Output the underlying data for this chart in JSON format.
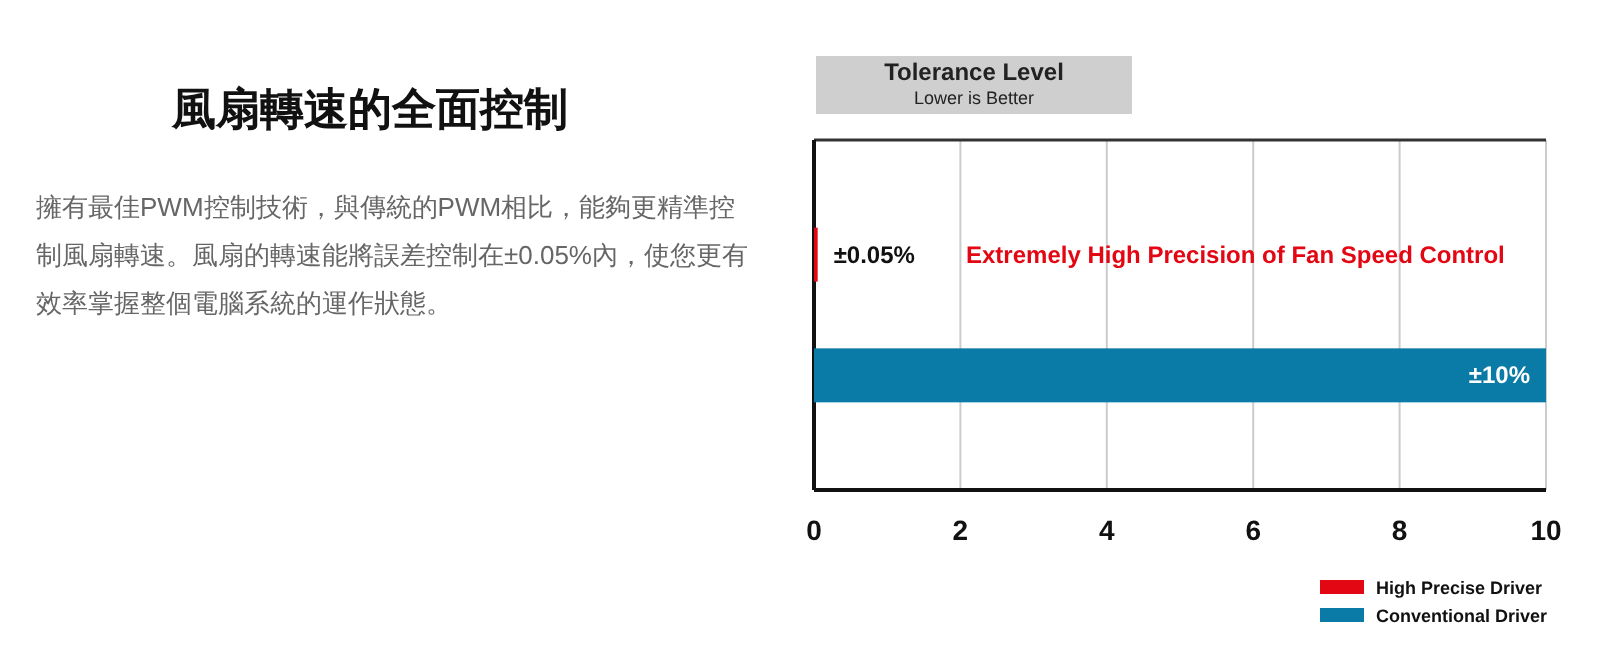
{
  "chart_data": [
    {
      "type": "other",
      "title": "風扇轉速的全面控制",
      "annotations": [
        "擁有最佳PWM控制技術，與傳統的PWM相比，能夠更精準控制風扇轉速。風扇的轉速能將誤差控制在±0.05%內，使您更有效率掌握整個電腦系統的運作狀態。"
      ]
    },
    {
      "type": "bar",
      "orientation": "horizontal",
      "title": "Tolerance Level",
      "subtitle": "Lower is Better",
      "categories": [
        null,
        null
      ],
      "series": [
        {
          "name": "High Precise Driver",
          "color": "#e30613",
          "values": [
            0.05,
            null
          ],
          "value_labels": [
            "±0.05%",
            null
          ]
        },
        {
          "name": "Conventional Driver",
          "color": "#0a7aa6",
          "values": [
            null,
            10
          ],
          "value_labels": [
            null,
            "±10%"
          ]
        }
      ],
      "annotations": [
        "Extremely High Precision of Fan Speed Control"
      ],
      "xlim": [
        0,
        10
      ],
      "xticks": [
        0,
        2,
        4,
        6,
        8,
        10
      ],
      "grid": "x",
      "legend": "bottom right"
    }
  ]
}
